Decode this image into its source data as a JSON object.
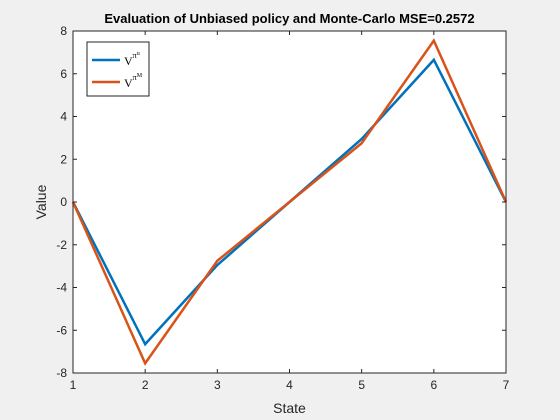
{
  "window": {
    "background": "#f0f0f0"
  },
  "chart_data": {
    "type": "line",
    "title": "Evaluation of Unbiased policy and Monte-Carlo MSE=0.2572",
    "xlabel": "State",
    "ylabel": "Value",
    "x": [
      1,
      2,
      3,
      4,
      5,
      6,
      7
    ],
    "xlim": [
      1,
      7
    ],
    "ylim": [
      -8,
      8
    ],
    "xticks": [
      1,
      2,
      3,
      4,
      5,
      6,
      7
    ],
    "yticks": [
      -8,
      -6,
      -4,
      -2,
      0,
      2,
      4,
      6,
      8
    ],
    "grid": false,
    "legend_position": "top-left",
    "series": [
      {
        "name": "V^{π^u}",
        "label_main": "V",
        "label_sup": "π",
        "label_subsup": "u",
        "color": "#0072BD",
        "values": [
          0,
          -6.65,
          -2.95,
          0,
          2.95,
          6.65,
          0
        ]
      },
      {
        "name": "V^{π^M}",
        "label_main": "V",
        "label_sup": "π",
        "label_subsup": "M",
        "color": "#D95319",
        "values": [
          0,
          -7.55,
          -2.75,
          0,
          2.75,
          7.55,
          0
        ]
      }
    ]
  }
}
